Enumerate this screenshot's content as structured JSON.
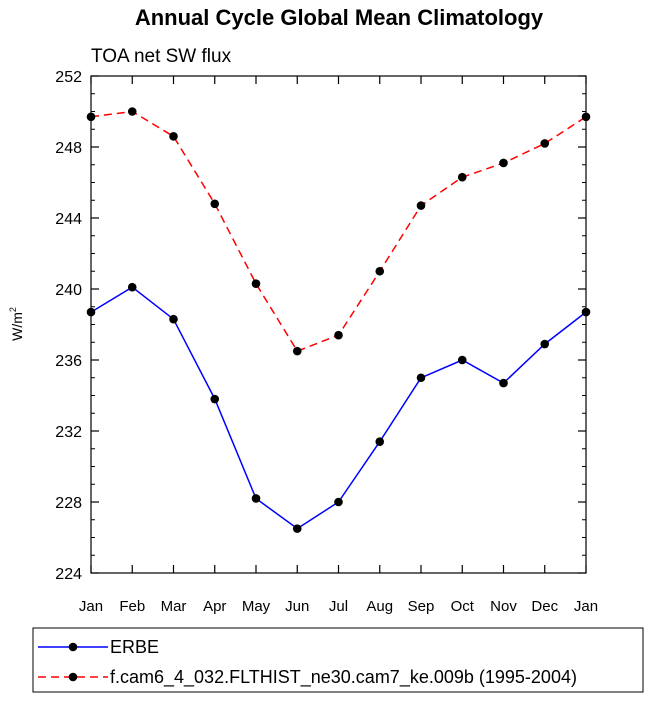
{
  "chart_data": {
    "type": "line",
    "title": "Annual Cycle Global Mean Climatology",
    "subtitle": "TOA net SW flux",
    "ylabel": "W/m",
    "ylabel_sup": "2",
    "xlabel": "",
    "categories": [
      "Jan",
      "Feb",
      "Mar",
      "Apr",
      "May",
      "Jun",
      "Jul",
      "Aug",
      "Sep",
      "Oct",
      "Nov",
      "Dec",
      "Jan"
    ],
    "ylim": [
      224,
      252
    ],
    "yticks": [
      224,
      228,
      232,
      236,
      240,
      244,
      248,
      252
    ],
    "grid": false,
    "legend_position": "bottom",
    "series": [
      {
        "name": "ERBE",
        "color": "#0000ff",
        "line_style": "solid",
        "marker": "filled-circle",
        "values": [
          238.7,
          240.1,
          238.3,
          233.8,
          228.2,
          226.5,
          228.0,
          231.4,
          235.0,
          236.0,
          234.7,
          236.9,
          238.7
        ]
      },
      {
        "name": "f.cam6_4_032.FLTHIST_ne30.cam7_ke.009b (1995-2004)",
        "color": "#ff0000",
        "line_style": "dashed",
        "marker": "filled-circle",
        "values": [
          249.7,
          250.0,
          248.6,
          244.8,
          240.3,
          236.5,
          237.4,
          241.0,
          244.7,
          246.3,
          247.1,
          248.2,
          249.7
        ]
      }
    ]
  }
}
